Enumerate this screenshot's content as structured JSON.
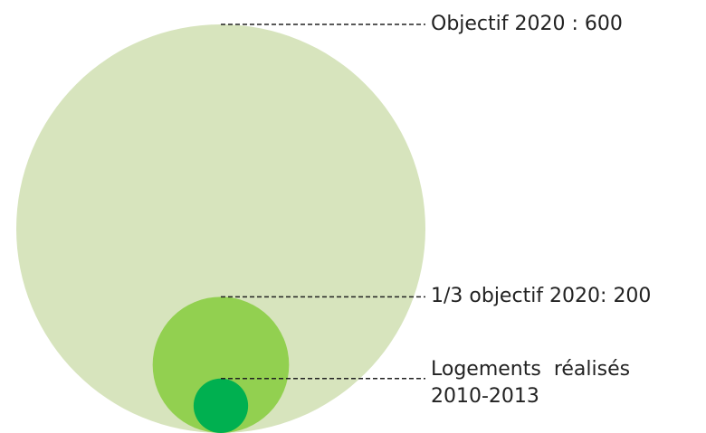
{
  "chart_data": {
    "type": "bubble",
    "categories": [
      "Objectif 2020 : 600",
      "1/3 objectif 2020: 200",
      "Logements  réalisés 2010-2013"
    ],
    "values": [
      600,
      200,
      80
    ],
    "colors": [
      "#d7e4bd",
      "#92d050",
      "#00b050"
    ]
  }
}
